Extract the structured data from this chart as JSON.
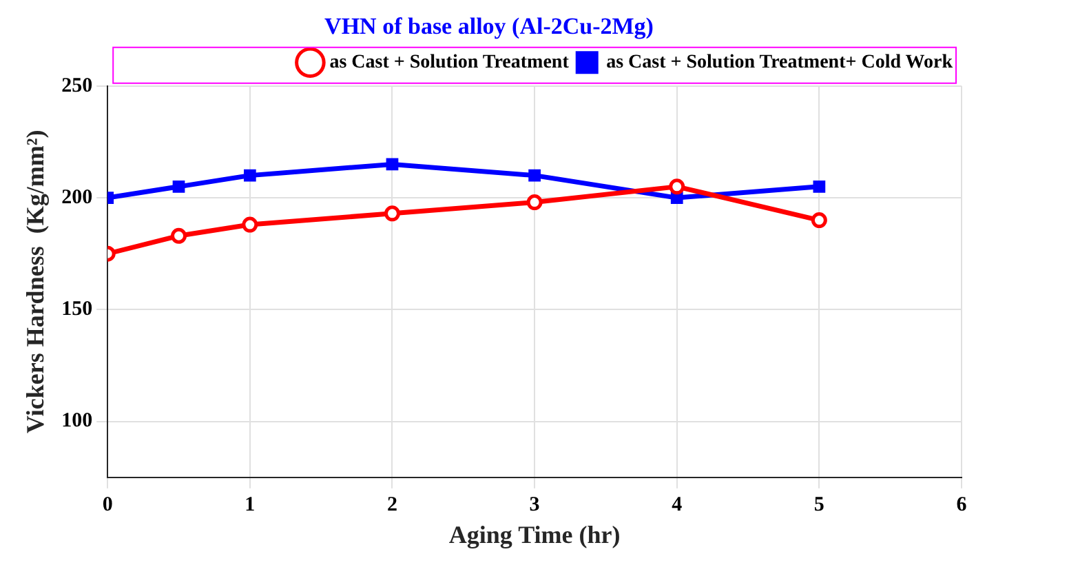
{
  "chart_data": {
    "type": "line",
    "title": "VHN of base alloy (Al-2Cu-2Mg)",
    "xlabel": "Aging Time (hr)",
    "ylabel": "Vickers Hardness  (Kg/mm²)",
    "x": [
      0,
      0.5,
      1,
      2,
      3,
      4,
      5
    ],
    "series": [
      {
        "name": "as Cast + Solution Treatment",
        "color": "#ff0000",
        "marker": "circle",
        "values": [
          175,
          183,
          188,
          193,
          198,
          205,
          190
        ]
      },
      {
        "name": "as Cast + Solution Treatment+ Cold Work",
        "color": "#0000ff",
        "marker": "square",
        "values": [
          200,
          205,
          210,
          215,
          210,
          200,
          205
        ]
      }
    ],
    "xlim": [
      0,
      6
    ],
    "xticks": [
      0,
      1,
      2,
      3,
      4,
      5,
      6
    ],
    "ylim": [
      75,
      250
    ],
    "yticks": [
      100,
      150,
      200,
      250
    ],
    "grid": true,
    "legend": "top right",
    "line_style": "solid"
  }
}
